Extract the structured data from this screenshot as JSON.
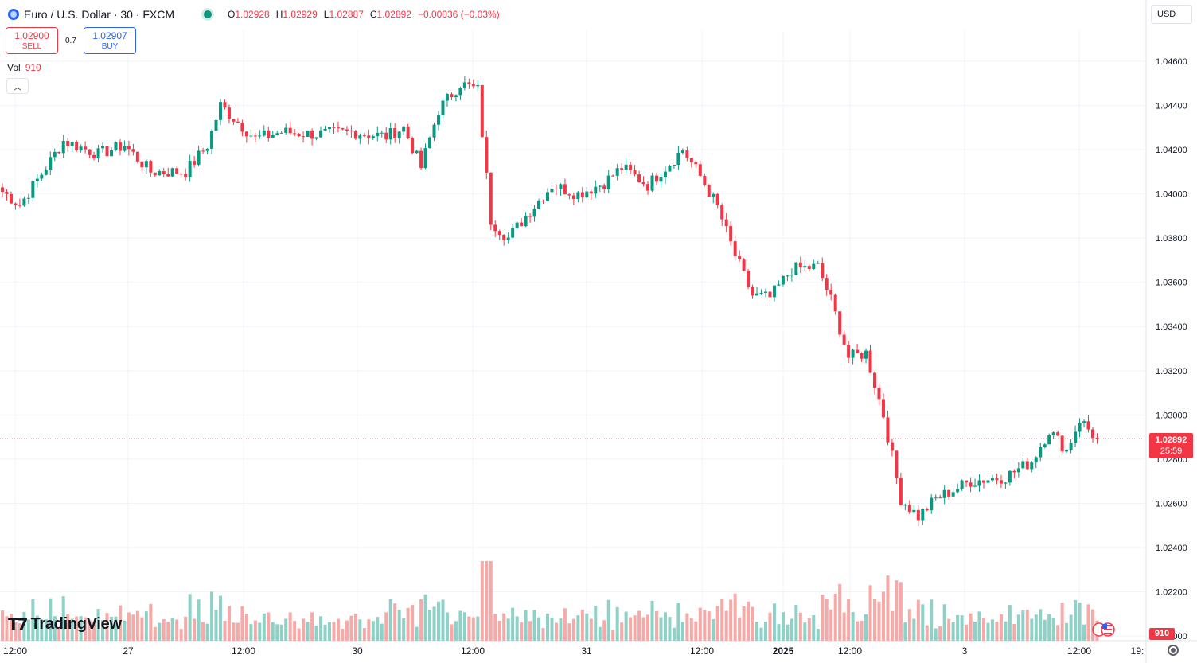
{
  "header": {
    "symbol": "Euro / U.S. Dollar · 30 · FXCM",
    "ohlc": {
      "o_label": "O",
      "o": "1.02928",
      "h_label": "H",
      "h": "1.02929",
      "l_label": "L",
      "l": "1.02887",
      "c_label": "C",
      "c": "1.02892",
      "change": "−0.00036 (−0.03%)"
    }
  },
  "trade": {
    "sell_price": "1.02900",
    "sell_label": "SELL",
    "spread": "0.7",
    "buy_price": "1.02907",
    "buy_label": "BUY"
  },
  "volume_legend": {
    "label": "Vol",
    "value": "910"
  },
  "currency": "USD",
  "last_price_tag": {
    "price": "1.02892",
    "countdown": "25:59"
  },
  "volume_tag": "910",
  "brand": "TradingView",
  "icons": [
    "symbol-icon",
    "live-status-icon",
    "collapse-chevron-icon",
    "flag-icon",
    "settings-icon",
    "tradingview-logo-icon"
  ],
  "colors": {
    "up": "#089981",
    "down": "#f23645",
    "vol_up": "#8ed1c6",
    "vol_down": "#f7a9a7",
    "grid": "#f0f3fa"
  },
  "chart_data": {
    "type": "candlestick",
    "y_ticks": [
      "1.04600",
      "1.04400",
      "1.04200",
      "1.04000",
      "1.03800",
      "1.03600",
      "1.03400",
      "1.03200",
      "1.03000",
      "1.02800",
      "1.02600",
      "1.02400",
      "1.02200",
      "1.02000"
    ],
    "ylim": [
      1.02,
      1.047
    ],
    "x_ticks": [
      "12:00",
      "27",
      "12:00",
      "30",
      "12:00",
      "31",
      "12:00",
      "2025",
      "12:00",
      "3",
      "12:00",
      "19:"
    ],
    "last_price": 1.02892,
    "trend": [
      {
        "i": 0,
        "p": 1.0401
      },
      {
        "i": 4,
        "p": 1.0395
      },
      {
        "i": 10,
        "p": 1.0412
      },
      {
        "i": 14,
        "p": 1.0424
      },
      {
        "i": 22,
        "p": 1.0418
      },
      {
        "i": 28,
        "p": 1.0422
      },
      {
        "i": 34,
        "p": 1.041
      },
      {
        "i": 42,
        "p": 1.041
      },
      {
        "i": 47,
        "p": 1.0422
      },
      {
        "i": 50,
        "p": 1.044
      },
      {
        "i": 58,
        "p": 1.0425
      },
      {
        "i": 64,
        "p": 1.0428
      },
      {
        "i": 72,
        "p": 1.0427
      },
      {
        "i": 80,
        "p": 1.0428
      },
      {
        "i": 88,
        "p": 1.0426
      },
      {
        "i": 92,
        "p": 1.043
      },
      {
        "i": 96,
        "p": 1.0412
      },
      {
        "i": 100,
        "p": 1.0438
      },
      {
        "i": 105,
        "p": 1.045
      },
      {
        "i": 109,
        "p": 1.0447
      },
      {
        "i": 112,
        "p": 1.0388
      },
      {
        "i": 116,
        "p": 1.038
      },
      {
        "i": 120,
        "p": 1.039
      },
      {
        "i": 126,
        "p": 1.0404
      },
      {
        "i": 132,
        "p": 1.04
      },
      {
        "i": 138,
        "p": 1.0405
      },
      {
        "i": 142,
        "p": 1.0412
      },
      {
        "i": 148,
        "p": 1.0404
      },
      {
        "i": 152,
        "p": 1.0412
      },
      {
        "i": 156,
        "p": 1.042
      },
      {
        "i": 160,
        "p": 1.0408
      },
      {
        "i": 164,
        "p": 1.0394
      },
      {
        "i": 168,
        "p": 1.0372
      },
      {
        "i": 172,
        "p": 1.0354
      },
      {
        "i": 176,
        "p": 1.0353
      },
      {
        "i": 181,
        "p": 1.0366
      },
      {
        "i": 187,
        "p": 1.0367
      },
      {
        "i": 190,
        "p": 1.0352
      },
      {
        "i": 194,
        "p": 1.0326
      },
      {
        "i": 198,
        "p": 1.0328
      },
      {
        "i": 202,
        "p": 1.03
      },
      {
        "i": 206,
        "p": 1.0262
      },
      {
        "i": 210,
        "p": 1.0254
      },
      {
        "i": 214,
        "p": 1.0262
      },
      {
        "i": 222,
        "p": 1.027
      },
      {
        "i": 230,
        "p": 1.0272
      },
      {
        "i": 236,
        "p": 1.0279
      },
      {
        "i": 240,
        "p": 1.0293
      },
      {
        "i": 244,
        "p": 1.0284
      },
      {
        "i": 247,
        "p": 1.0298
      },
      {
        "i": 251,
        "p": 1.0289
      }
    ]
  }
}
